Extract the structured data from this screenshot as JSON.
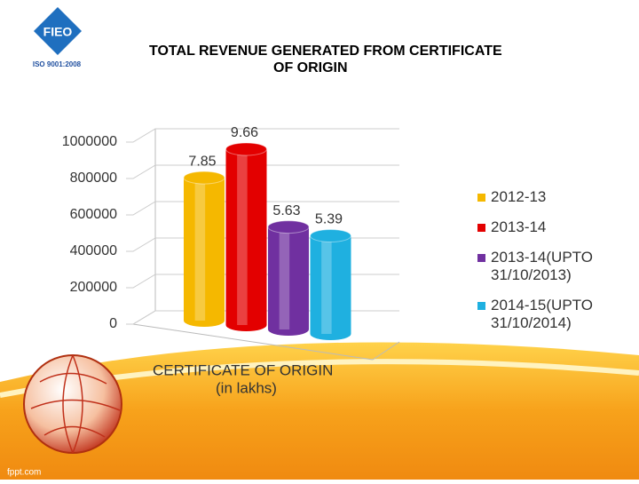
{
  "logo": {
    "text": "FIEO",
    "caption": "ISO 9001:2008"
  },
  "footer": "fppt.com",
  "chart_data": {
    "type": "bar",
    "title": [
      "TOTAL REVENUE GENERATED FROM CERTIFICATE",
      "OF ORIGIN"
    ],
    "x_label": [
      "CERTIFICATE OF ORIGIN",
      "(in lakhs)"
    ],
    "ylim": [
      0,
      1000000
    ],
    "yticks": [
      0,
      200000,
      400000,
      600000,
      800000,
      1000000
    ],
    "grid": true,
    "legend": "right",
    "series": [
      {
        "name": "2012-13",
        "color": "#f5b800",
        "values": [
          785000
        ],
        "value_labels": [
          "7.85"
        ]
      },
      {
        "name": "2013-14",
        "color": "#e30000",
        "values": [
          966000
        ],
        "value_labels": [
          "9.66"
        ]
      },
      {
        "name": "2013-14(UPTO 31/10/2013)",
        "color": "#7030a0",
        "values": [
          563000
        ],
        "value_labels": [
          "5.63"
        ]
      },
      {
        "name": "2014-15(UPTO 31/10/2014)",
        "color": "#1fb0e0",
        "values": [
          539000
        ],
        "value_labels": [
          "5.39"
        ]
      }
    ]
  }
}
